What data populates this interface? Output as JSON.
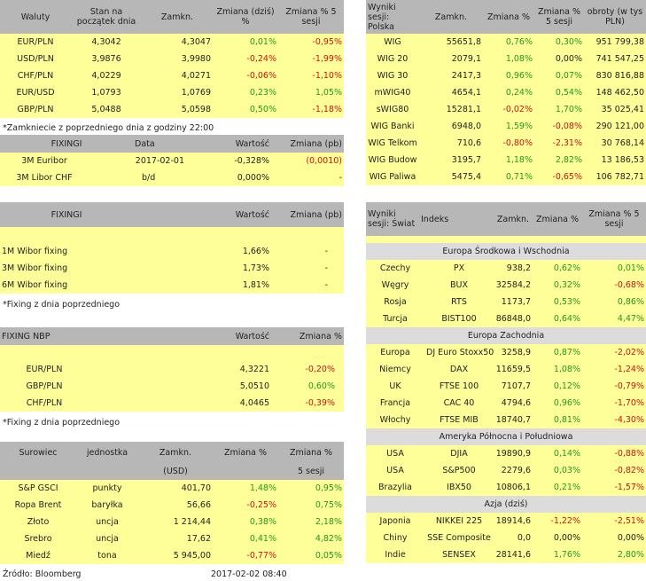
{
  "fx": {
    "headers": [
      "Waluty",
      "Stan na początek dnia",
      "Zamkn.",
      "Zmiana (dziś) %",
      "Zmiana % 5 sesji"
    ],
    "rows": [
      [
        "EUR/PLN",
        "4,3042",
        "4,3047",
        "0,01%",
        "-0,95%"
      ],
      [
        "USD/PLN",
        "3,9876",
        "3,9980",
        "-0,24%",
        "-1,99%"
      ],
      [
        "CHF/PLN",
        "4,0229",
        "4,0271",
        "-0,06%",
        "-1,10%"
      ],
      [
        "EUR/USD",
        "1,0793",
        "1,0769",
        "0,23%",
        "1,05%"
      ],
      [
        "GBP/PLN",
        "5,0488",
        "5,0598",
        "0,50%",
        "-1,18%"
      ]
    ],
    "note": "*Zamkniecie z poprzedniego dnia z godziny 22:00"
  },
  "fixing1": {
    "headers": [
      "FIXINGI",
      "Data",
      "Wartość",
      "Zmiana (pb)"
    ],
    "rows": [
      [
        "3M Euribor",
        "2017-02-01",
        "-0,328%",
        "(0,0010)"
      ],
      [
        "3M Libor CHF",
        "b/d",
        "0,000%",
        "-"
      ]
    ]
  },
  "fixing2": {
    "headers": [
      "FIXINGI",
      "Wartość",
      "Zmiana (pb)"
    ],
    "rows": [
      [
        "1M Wibor fixing",
        "1,66%",
        "-"
      ],
      [
        "3M Wibor fixing",
        "1,73%",
        "-"
      ],
      [
        "6M Wibor fixing",
        "1,81%",
        "-"
      ]
    ],
    "note": "*Fixing z dnia poprzedniego"
  },
  "nbp": {
    "headers": [
      "FIXING NBP",
      "Wartość",
      "Zmiana %"
    ],
    "rows": [
      [
        "EUR/PLN",
        "4,3221",
        "-0,20%"
      ],
      [
        "GBP/PLN",
        "5,0510",
        "0,60%"
      ],
      [
        "CHF/PLN",
        "4,0465",
        "-0,39%"
      ]
    ],
    "note": "*Fixing z dnia poprzedniego"
  },
  "commodities": {
    "headers": [
      "Surowiec",
      "jednostka",
      "Zamkn.",
      "Zmiana %",
      "Zmiana %"
    ],
    "subheaders": [
      "(USD)",
      "5 sesji"
    ],
    "rows": [
      [
        "S&P GSCI",
        "punkty",
        "401,70",
        "1,48%",
        "0,95%"
      ],
      [
        "Ropa Brent",
        "baryłka",
        "56,66",
        "-0,25%",
        "0,75%"
      ],
      [
        "Złoto",
        "uncja",
        "1 214,44",
        "0,38%",
        "2,18%"
      ],
      [
        "Srebro",
        "uncja",
        "17,62",
        "0,41%",
        "4,82%"
      ],
      [
        "Miedź",
        "tona",
        "5 945,00",
        "-0,77%",
        "0,05%"
      ]
    ]
  },
  "footer": {
    "source": "Źródło: Bloomberg",
    "timestamp": "2017-02-02 08:40"
  },
  "pl": {
    "headers": [
      "Wyniki sesji: Polska",
      "Zamkn.",
      "Zmiana %",
      "Zmiana % 5 sesji",
      "obroty (w tys PLN)"
    ],
    "rows": [
      [
        "WIG",
        "55651,8",
        "0,76%",
        "0,30%",
        "951 799,38"
      ],
      [
        "WIG 20",
        "2079,1",
        "1,08%",
        "0,00%",
        "741 547,25"
      ],
      [
        "WIG 30",
        "2417,3",
        "0,96%",
        "0,07%",
        "830 816,88"
      ],
      [
        "mWIG40",
        "4654,1",
        "0,24%",
        "0,54%",
        "148 462,50"
      ],
      [
        "sWIG80",
        "15281,1",
        "-0,02%",
        "1,70%",
        "35 025,41"
      ],
      [
        "WIG Banki",
        "6948,0",
        "1,59%",
        "-0,08%",
        "290 121,00"
      ],
      [
        "WIG Telkom",
        "710,6",
        "-0,80%",
        "-2,31%",
        "30 768,14"
      ],
      [
        "WIG Budow",
        "3195,7",
        "1,18%",
        "2,82%",
        "13 186,53"
      ],
      [
        "WIG Paliwa",
        "5475,4",
        "0,71%",
        "-0,65%",
        "106 782,71"
      ]
    ]
  },
  "world": {
    "headers": [
      "Wyniki sesji: Świat",
      "Indeks",
      "Zamkn.",
      "Zmiana %",
      "Zmiana % 5 sesji"
    ],
    "sections": [
      {
        "title": "Europa Środkowa i Wschodnia",
        "rows": [
          [
            "Czechy",
            "PX",
            "938,2",
            "0,62%",
            "0,01%"
          ],
          [
            "Węgry",
            "BUX",
            "32584,2",
            "0,32%",
            "-0,68%"
          ],
          [
            "Rosja",
            "RTS",
            "1173,7",
            "0,53%",
            "0,86%"
          ],
          [
            "Turcja",
            "BIST100",
            "86848,0",
            "0,64%",
            "4,47%"
          ]
        ]
      },
      {
        "title": "Europa Zachodnia",
        "rows": [
          [
            "Europa",
            "DJ Euro Stoxx50",
            "3258,9",
            "0,87%",
            "-2,02%"
          ],
          [
            "Niemcy",
            "DAX",
            "11659,5",
            "1,08%",
            "-1,24%"
          ],
          [
            "UK",
            "FTSE 100",
            "7107,7",
            "0,12%",
            "-0,79%"
          ],
          [
            "Francja",
            "CAC 40",
            "4794,6",
            "0,96%",
            "-1,70%"
          ],
          [
            "Włochy",
            "FTSE MIB",
            "18740,7",
            "0,81%",
            "-4,30%"
          ]
        ]
      },
      {
        "title": "Ameryka Północna i Południowa",
        "rows": [
          [
            "USA",
            "DJIA",
            "19890,9",
            "0,14%",
            "-0,88%"
          ],
          [
            "USA",
            "S&P500",
            "2279,6",
            "0,03%",
            "-0,82%"
          ],
          [
            "Brazylia",
            "IBX50",
            "10806,1",
            "0,21%",
            "-1,57%"
          ]
        ]
      },
      {
        "title": "Azja (dziś)",
        "rows": [
          [
            "Japonia",
            "NIKKEI 225",
            "18914,6",
            "-1,22%",
            "-2,51%"
          ],
          [
            "Chiny",
            "SSE Composite",
            "0,0",
            "0,00%",
            "0,00%"
          ],
          [
            "Indie",
            "SENSEX",
            "28141,6",
            "1,76%",
            "2,80%"
          ]
        ]
      }
    ]
  },
  "colors": {
    "positive": "#1f9a1f",
    "negative": "#d01010",
    "row_bg": "#ffff99",
    "header_bg": "#b7b7b7"
  }
}
